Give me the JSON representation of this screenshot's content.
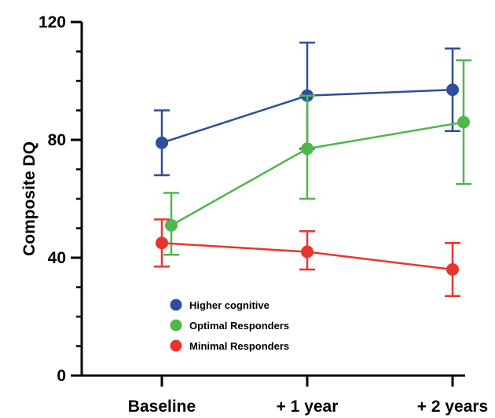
{
  "chart_data": {
    "type": "line",
    "title": "",
    "xlabel": "",
    "ylabel": "Composite DQ",
    "categories": [
      "Baseline",
      "+ 1 year",
      "+ 2 years"
    ],
    "ylim": [
      0,
      120
    ],
    "yticks": [
      0,
      40,
      80,
      120
    ],
    "y_minor_step": 10,
    "grid": false,
    "legend_position": "bottom-left",
    "series": [
      {
        "name": "Higher cognitive",
        "color": "#2C4F9E",
        "values": [
          79,
          95,
          97
        ],
        "error_low": [
          68,
          77,
          83
        ],
        "error_high": [
          90,
          113,
          111
        ]
      },
      {
        "name": "Optimal Responders",
        "color": "#4DB848",
        "values": [
          51,
          77,
          86
        ],
        "error_low": [
          41,
          60,
          65
        ],
        "error_high": [
          62,
          95,
          107
        ]
      },
      {
        "name": "Minimal Responders",
        "color": "#E8352C",
        "values": [
          45,
          42,
          36
        ],
        "error_low": [
          37,
          36,
          27
        ],
        "error_high": [
          53,
          49,
          45
        ]
      }
    ]
  }
}
